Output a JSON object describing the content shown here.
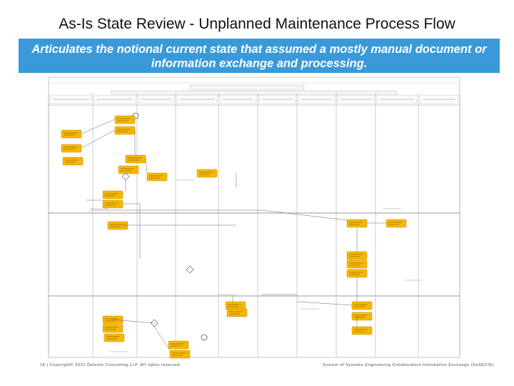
{
  "slide": {
    "title": "As-Is State Review - Unplanned Maintenance Process Flow",
    "subtitle": "Articulates the notional current state that assumed a mostly manual document or information exchange and processing.",
    "footer_left": "14 | Copyright© 2021 Deloitte Consulting LLP. All rights reserved.",
    "footer_right": "System of Systems Engineering Collaborators Information Exchange (SoSECIE)"
  },
  "colors": {
    "banner": "#3a9ad9",
    "task_fill": "#f5b800",
    "task_border": "#c98a00",
    "lane_line": "#9a9a9a"
  }
}
